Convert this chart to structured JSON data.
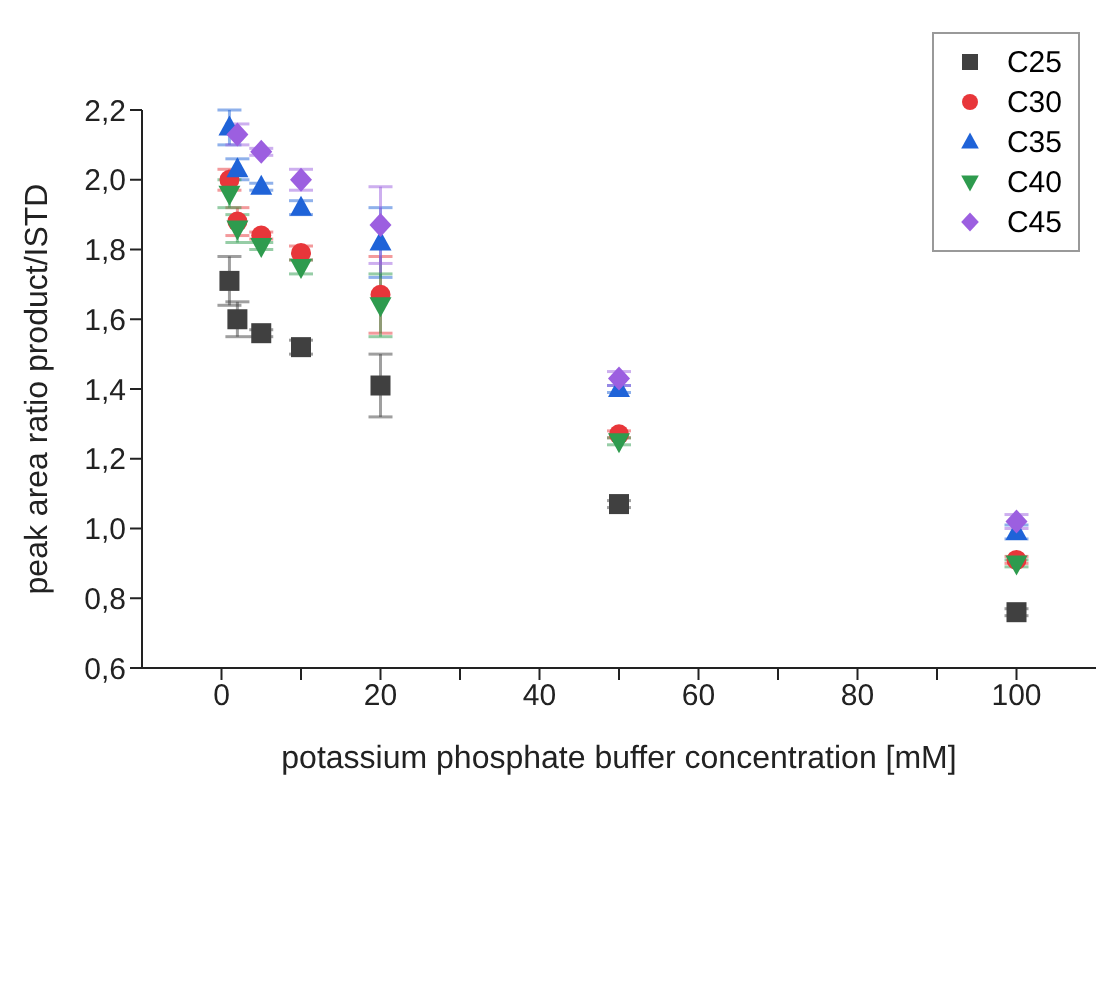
{
  "chart_data": {
    "type": "scatter",
    "xlabel": "potassium phosphate buffer concentration [mM]",
    "ylabel": "peak area ratio product/ISTD",
    "x": [
      1,
      2,
      5,
      10,
      20,
      50,
      100
    ],
    "series": [
      {
        "name": "C25",
        "color": "#404040",
        "marker": "square",
        "values": [
          1.71,
          1.6,
          1.56,
          1.52,
          1.41,
          1.07,
          0.76
        ],
        "errors": [
          0.07,
          0.05,
          0.01,
          0.02,
          0.09,
          0.01,
          0.01
        ]
      },
      {
        "name": "C30",
        "color": "#e8363a",
        "marker": "circle",
        "values": [
          2.0,
          1.88,
          1.84,
          1.79,
          1.67,
          1.27,
          0.91
        ],
        "errors": [
          0.03,
          0.04,
          0.01,
          0.02,
          0.11,
          0.01,
          0.01
        ]
      },
      {
        "name": "C35",
        "color": "#1f63d8",
        "marker": "triangle",
        "values": [
          2.15,
          2.03,
          1.98,
          1.92,
          1.82,
          1.4,
          0.99
        ],
        "errors": [
          0.05,
          0.03,
          0.01,
          0.02,
          0.1,
          0.01,
          0.02
        ]
      },
      {
        "name": "C40",
        "color": "#2e9b4e",
        "marker": "triangle-down",
        "values": [
          1.96,
          1.86,
          1.81,
          1.75,
          1.64,
          1.25,
          0.9
        ],
        "errors": [
          0.04,
          0.04,
          0.01,
          0.02,
          0.09,
          0.01,
          0.01
        ]
      },
      {
        "name": "C45",
        "color": "#9c5fe0",
        "marker": "diamond",
        "values": [
          null,
          2.13,
          2.08,
          2.0,
          1.87,
          1.43,
          1.02
        ],
        "errors": [
          null,
          0.03,
          0.01,
          0.03,
          0.11,
          0.02,
          0.02
        ]
      }
    ],
    "xlim": [
      -10,
      110
    ],
    "xticks": [
      0,
      {
        "value": 10,
        "label": null
      },
      20,
      {
        "value": 30,
        "label": null
      },
      40,
      {
        "value": 50,
        "label": null
      },
      60,
      {
        "value": 70,
        "label": null
      },
      80,
      {
        "value": 90,
        "label": null
      },
      100
    ],
    "ylim": [
      0.6,
      2.2
    ],
    "yticks": [
      {
        "value": 0.6,
        "label": "0,6"
      },
      {
        "value": 0.8,
        "label": "0,8"
      },
      {
        "value": 1.0,
        "label": "1,0"
      },
      {
        "value": 1.2,
        "label": "1,2"
      },
      {
        "value": 1.4,
        "label": "1,4"
      },
      {
        "value": 1.6,
        "label": "1,6"
      },
      {
        "value": 1.8,
        "label": "1,8"
      },
      {
        "value": 2.0,
        "label": "2,0"
      },
      {
        "value": 2.2,
        "label": "2,2"
      }
    ],
    "grid": false,
    "legend": "top right"
  }
}
